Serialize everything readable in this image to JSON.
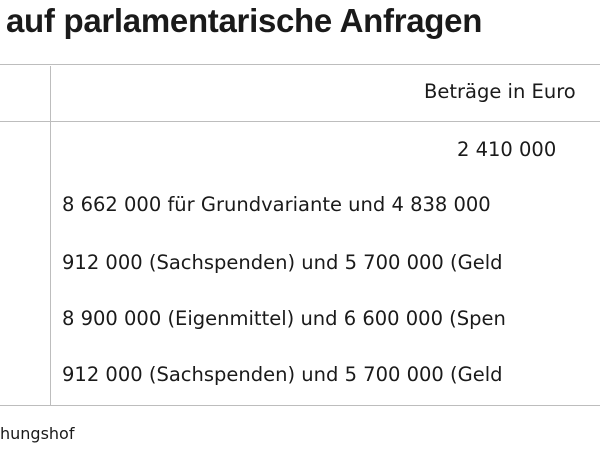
{
  "title": "auf parlamentarische Anfragen",
  "table": {
    "column_header": "Beträge in Euro",
    "rows": [
      "2 410 000",
      "8 662 000 für Grundvariante und 4 838 000",
      "912 000 (Sachspenden) und 5 700 000 (Geld",
      "8 900 000 (Eigenmittel) und 6 600 000 (Spen",
      "912 000 (Sachspenden) und 5 700 000 (Geld"
    ]
  },
  "footer": "hungshof"
}
